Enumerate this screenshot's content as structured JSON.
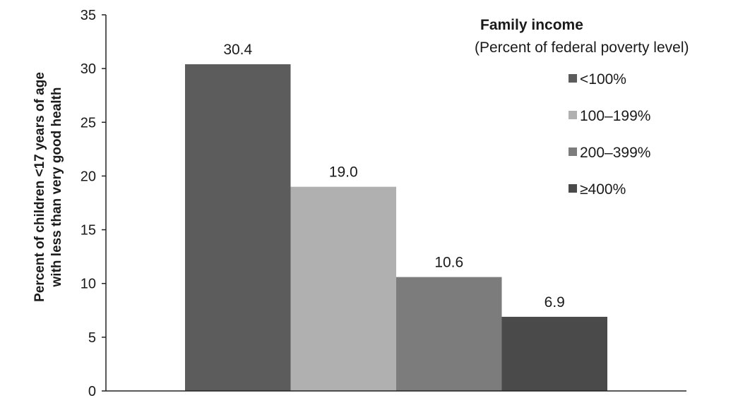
{
  "chart_data": {
    "type": "bar",
    "categories": [
      "<100%",
      "100–199%",
      "200–399%",
      "≥400%"
    ],
    "values": [
      30.4,
      19.0,
      10.6,
      6.9
    ],
    "data_labels": [
      "30.4",
      "19.0",
      "10.6",
      "6.9"
    ],
    "colors": [
      "#5c5c5c",
      "#b0b0b0",
      "#7c7c7c",
      "#4a4a4a"
    ],
    "ylabel_lines": [
      "Percent of children <17 years of age",
      "with less than very good health"
    ],
    "ylim": [
      0,
      35
    ],
    "yticks": [
      0,
      5,
      10,
      15,
      20,
      25,
      30,
      35
    ],
    "grid": false,
    "legend": {
      "title": "Family income",
      "subtitle": "(Percent of federal poverty level)",
      "placement": "top-right",
      "entries": [
        "<100%",
        "100–199%",
        "200–399%",
        "≥400%"
      ]
    }
  }
}
